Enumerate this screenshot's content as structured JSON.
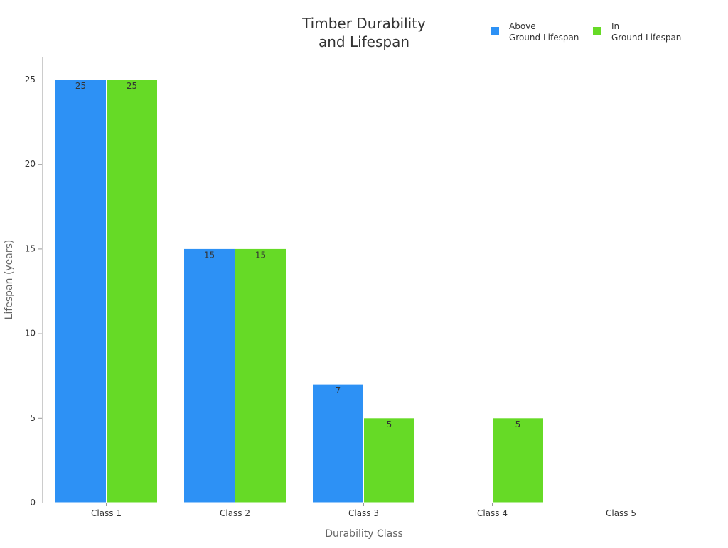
{
  "chart_data": {
    "type": "bar",
    "title": "Timber Durability\nand Lifespan",
    "title_lines": [
      "Timber Durability",
      "and Lifespan"
    ],
    "xlabel": "Durability Class",
    "ylabel": "Lifespan (years)",
    "categories": [
      "Class 1",
      "Class 2",
      "Class 3",
      "Class 4",
      "Class 5"
    ],
    "ylim": [
      0,
      26.3
    ],
    "yticks": [
      0,
      5,
      10,
      15,
      20,
      25
    ],
    "grid": false,
    "legend_position": "top-right",
    "series": [
      {
        "name": "Above\nGround Lifespan",
        "name_lines": [
          "Above",
          "Ground Lifespan"
        ],
        "color": "#2d91f5",
        "values": [
          25,
          15,
          7,
          null,
          null
        ]
      },
      {
        "name": "In\nGround Lifespan",
        "name_lines": [
          "In",
          "Ground Lifespan"
        ],
        "color": "#66da26",
        "values": [
          25,
          15,
          5,
          5,
          null
        ]
      }
    ]
  }
}
